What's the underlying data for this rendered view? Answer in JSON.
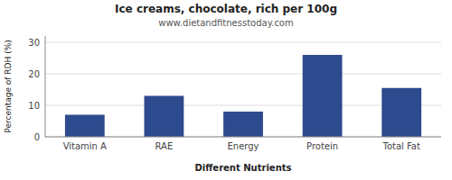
{
  "chart_data": {
    "type": "bar",
    "title": "Ice creams, chocolate, rich per 100g",
    "subtitle": "www.dietandfitnesstoday.com",
    "xlabel": "Different Nutrients",
    "ylabel": "Percentage of RDH (%)",
    "categories": [
      "Vitamin A",
      "RAE",
      "Energy",
      "Protein",
      "Total Fat"
    ],
    "values": [
      7,
      13,
      8,
      26,
      15.5
    ],
    "color": "#2e4a8e",
    "ylim": [
      0,
      32
    ],
    "yticks": [
      0,
      10,
      20,
      30
    ],
    "grid": true
  }
}
